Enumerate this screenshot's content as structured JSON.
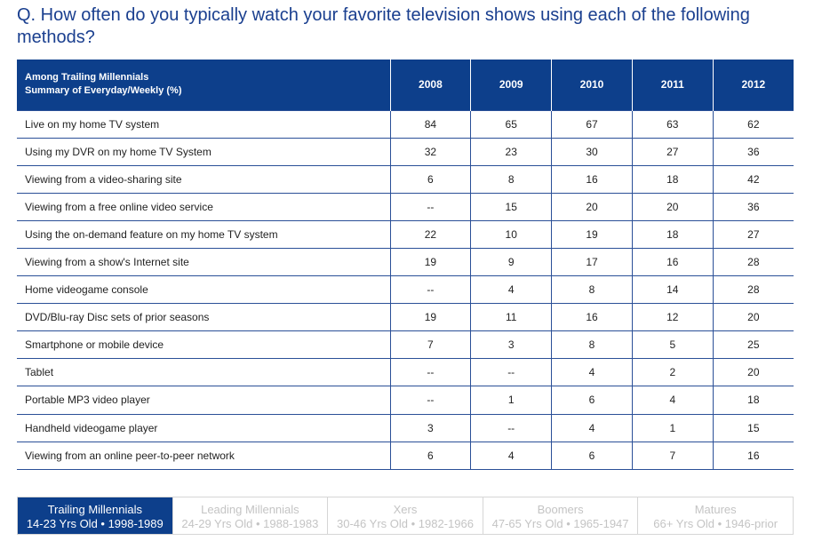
{
  "question": "Q. How often do you typically watch your favorite television shows using each of the following methods?",
  "table": {
    "header_line1": "Among Trailing Millennials",
    "header_line2": "Summary of Everyday/Weekly (%)",
    "years": [
      "2008",
      "2009",
      "2010",
      "2011",
      "2012"
    ],
    "rows": [
      {
        "label": "Live on my home TV system",
        "values": [
          "84",
          "65",
          "67",
          "63",
          "62"
        ]
      },
      {
        "label": "Using my DVR on my home TV System",
        "values": [
          "32",
          "23",
          "30",
          "27",
          "36"
        ]
      },
      {
        "label": "Viewing from a video-sharing site",
        "values": [
          "6",
          "8",
          "16",
          "18",
          "42"
        ]
      },
      {
        "label": "Viewing from a free online video service",
        "values": [
          "--",
          "15",
          "20",
          "20",
          "36"
        ]
      },
      {
        "label": "Using the on-demand feature on my home TV system",
        "values": [
          "22",
          "10",
          "19",
          "18",
          "27"
        ]
      },
      {
        "label": "Viewing from a show's Internet site",
        "values": [
          "19",
          "9",
          "17",
          "16",
          "28"
        ]
      },
      {
        "label": "Home videogame console",
        "values": [
          "--",
          "4",
          "8",
          "14",
          "28"
        ]
      },
      {
        "label": "DVD/Blu-ray Disc sets of prior seasons",
        "values": [
          "19",
          "11",
          "16",
          "12",
          "20"
        ]
      },
      {
        "label": "Smartphone or mobile device",
        "values": [
          "7",
          "3",
          "8",
          "5",
          "25"
        ]
      },
      {
        "label": "Tablet",
        "values": [
          "--",
          "--",
          "4",
          "2",
          "20"
        ]
      },
      {
        "label": "Portable MP3 video player",
        "values": [
          "--",
          "1",
          "6",
          "4",
          "18"
        ]
      },
      {
        "label": "Handheld videogame player",
        "values": [
          "3",
          "--",
          "4",
          "1",
          "15"
        ]
      },
      {
        "label": "Viewing from an online peer-to-peer network",
        "values": [
          "6",
          "4",
          "6",
          "7",
          "16"
        ]
      }
    ]
  },
  "generations": [
    {
      "name": "Trailing Millennials",
      "detail": "14-23 Yrs Old  •  1998-1989",
      "active": true
    },
    {
      "name": "Leading Millennials",
      "detail": "24-29 Yrs Old  • 1988-1983",
      "active": false
    },
    {
      "name": "Xers",
      "detail": "30-46 Yrs Old  • 1982-1966",
      "active": false
    },
    {
      "name": "Boomers",
      "detail": "47-65 Yrs Old  • 1965-1947",
      "active": false
    },
    {
      "name": "Matures",
      "detail": "66+ Yrs Old  • 1946-prior",
      "active": false
    }
  ],
  "colors": {
    "header_bg": "#0d3f8b",
    "question_text": "#1a3f8f",
    "inactive_tab_text": "#c4c4c4"
  }
}
